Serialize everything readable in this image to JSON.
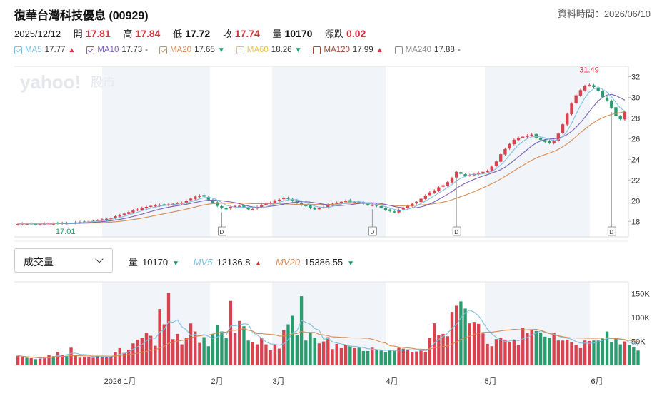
{
  "header": {
    "title": "復華台灣科技優息 (00929)",
    "data_time": "資料時間：2026/06/10"
  },
  "quote": {
    "date": "2025/12/12",
    "open_label": "開",
    "open": "17.81",
    "high_label": "高",
    "high": "17.84",
    "low_label": "低",
    "low": "17.72",
    "close_label": "收",
    "close": "17.74",
    "vol_label": "量",
    "vol": "10170",
    "chg_label": "漲跌",
    "chg": "0.02"
  },
  "ma_legend": [
    {
      "label": "MA5",
      "value": "17.77",
      "trend": "up",
      "color": "#7ec0df",
      "checked": true
    },
    {
      "label": "MA10",
      "value": "17.73",
      "trend": "flat",
      "color": "#7c61b5",
      "checked": true
    },
    {
      "label": "MA20",
      "value": "17.65",
      "trend": "down",
      "color": "#d88b53",
      "checked": true
    },
    {
      "label": "MA60",
      "value": "18.26",
      "trend": "down",
      "color": "#e6c254",
      "checked": false
    },
    {
      "label": "MA120",
      "value": "17.99",
      "trend": "up",
      "color": "#9b4a36",
      "checked": false
    },
    {
      "label": "MA240",
      "value": "17.88",
      "trend": "flat",
      "color": "#8a8a8a",
      "checked": false
    }
  ],
  "arrows": {
    "up": "▲",
    "down": "▼",
    "flat": "-"
  },
  "watermark": {
    "brand": "yahoo!",
    "sub": "股市"
  },
  "price_axis": {
    "ticks": [
      "32",
      "30",
      "28",
      "26",
      "24",
      "22",
      "20",
      "18"
    ],
    "high_label": "31.49",
    "low_label": "17.01"
  },
  "dividend_marker": "D",
  "volume_panel": {
    "select_label": "成交量",
    "vol_label": "量",
    "vol_value": "10170",
    "mv5_label": "MV5",
    "mv5_value": "12136.8",
    "mv20_label": "MV20",
    "mv20_value": "15386.55",
    "axis_ticks": [
      "150K",
      "100K",
      "50K"
    ]
  },
  "x_axis_labels": [
    "2026 1月",
    "2月",
    "3月",
    "4月",
    "5月",
    "6月"
  ],
  "colors": {
    "up": "#d9434f",
    "down": "#2a9d6f",
    "ma5": "#7ec0df",
    "ma10": "#7c61b5",
    "ma20": "#d88b53",
    "band": "#f1f4f9"
  },
  "chart_data": [
    {
      "type": "candlestick",
      "title": "",
      "ylim": [
        16.5,
        33
      ],
      "ytick_labels": [
        "18",
        "20",
        "22",
        "24",
        "26",
        "28",
        "30",
        "32"
      ],
      "x_month_labels": [
        "2026 1月",
        "2月",
        "3月",
        "4月",
        "5月",
        "6月"
      ],
      "annotations": [
        "31.49",
        "17.01"
      ],
      "series_ma": [
        "MA5",
        "MA10",
        "MA20"
      ],
      "close": [
        17.74,
        17.8,
        17.77,
        17.78,
        17.72,
        17.75,
        17.8,
        17.81,
        17.79,
        17.82,
        17.85,
        17.83,
        17.86,
        17.9,
        17.94,
        17.97,
        18.0,
        18.05,
        18.1,
        18.2,
        18.25,
        18.35,
        18.5,
        18.6,
        18.75,
        18.9,
        19.05,
        19.15,
        19.3,
        19.4,
        19.5,
        19.55,
        19.6,
        19.6,
        19.65,
        19.7,
        19.75,
        19.8,
        20.0,
        20.2,
        20.4,
        20.5,
        20.4,
        20.1,
        19.8,
        19.5,
        19.3,
        19.2,
        19.4,
        19.5,
        19.5,
        19.3,
        19.2,
        19.2,
        19.4,
        19.6,
        19.7,
        19.8,
        20.0,
        20.1,
        20.3,
        20.2,
        20.0,
        19.8,
        19.6,
        19.5,
        19.3,
        19.2,
        19.3,
        19.4,
        19.6,
        19.7,
        19.8,
        19.9,
        20.0,
        19.9,
        19.9,
        19.8,
        19.7,
        19.6,
        19.6,
        19.5,
        19.3,
        19.1,
        19.0,
        18.9,
        19.1,
        19.3,
        19.5,
        19.7,
        19.9,
        20.2,
        20.5,
        20.8,
        21.0,
        21.3,
        21.5,
        21.8,
        22.2,
        22.8,
        22.6,
        22.4,
        22.5,
        22.6,
        22.7,
        22.8,
        22.9,
        23.3,
        23.8,
        24.5,
        25.0,
        25.5,
        25.9,
        26.1,
        26.2,
        26.3,
        26.4,
        26.1,
        25.9,
        25.7,
        25.6,
        25.8,
        26.5,
        27.4,
        28.4,
        29.4,
        30.2,
        30.7,
        31.1,
        31.2,
        31.0,
        30.6,
        30.0,
        29.7,
        29.0,
        28.2,
        27.9,
        28.6
      ]
    },
    {
      "type": "bar",
      "title": "",
      "ylim": [
        0,
        175000
      ],
      "ytick_labels": [
        "50K",
        "100K",
        "150K"
      ],
      "values": [
        20000,
        18000,
        16000,
        15000,
        13000,
        14000,
        18000,
        21000,
        19000,
        28000,
        22000,
        20000,
        37000,
        21000,
        16000,
        18000,
        17000,
        16000,
        19000,
        17000,
        17000,
        18000,
        28000,
        36000,
        26000,
        33000,
        46000,
        54000,
        58000,
        68000,
        62000,
        41000,
        118000,
        86000,
        152000,
        55000,
        66000,
        44000,
        58000,
        88000,
        71000,
        47000,
        59000,
        40000,
        66000,
        84000,
        71000,
        57000,
        135000,
        68000,
        93000,
        82000,
        52000,
        48000,
        44000,
        58000,
        44000,
        32000,
        42000,
        35000,
        74000,
        86000,
        104000,
        63000,
        145000,
        52000,
        68000,
        58000,
        46000,
        50000,
        59000,
        34000,
        45000,
        36000,
        42000,
        41000,
        36000,
        37000,
        30000,
        30000,
        37000,
        32000,
        31000,
        28000,
        31000,
        30000,
        37000,
        35000,
        33000,
        28000,
        29000,
        32000,
        28000,
        57000,
        88000,
        64000,
        66000,
        61000,
        112000,
        125000,
        134000,
        119000,
        88000,
        91000,
        87000,
        67000,
        45000,
        40000,
        55000,
        58000,
        54000,
        48000,
        54000,
        43000,
        79000,
        68000,
        75000,
        72000,
        69000,
        60000,
        58000,
        68000,
        52000,
        52000,
        54000,
        48000,
        43000,
        36000,
        52000,
        51000,
        52000,
        52000,
        56000,
        71000,
        49000,
        56000,
        44000,
        50000,
        43000,
        38000,
        31000
      ]
    }
  ]
}
